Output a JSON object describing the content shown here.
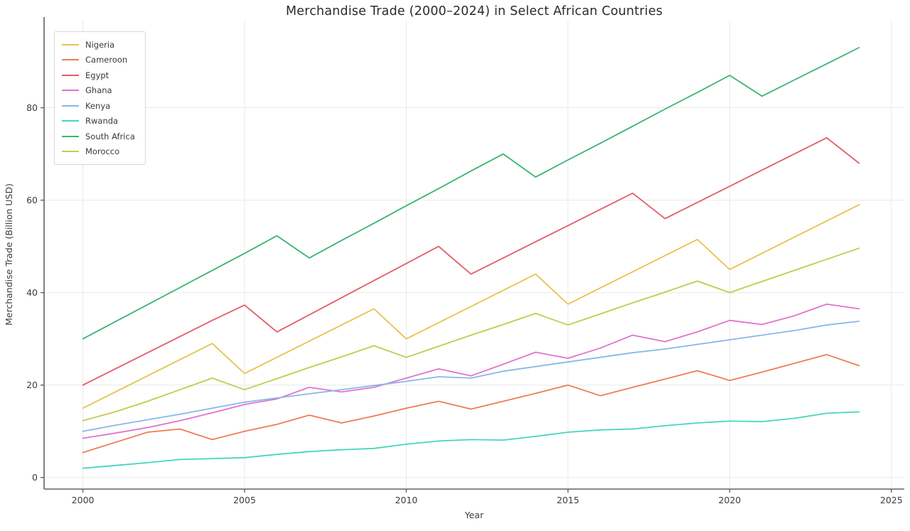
{
  "chart_data": {
    "type": "line",
    "title": "Merchandise Trade (2000–2024) in Select African Countries",
    "xlabel": "Year",
    "ylabel": "Merchandise Trade (Billion USD)",
    "x_ticks": [
      2000,
      2005,
      2010,
      2015,
      2020,
      2025
    ],
    "y_ticks": [
      0,
      20,
      40,
      60,
      80
    ],
    "xlim": [
      1998.8,
      2025.4
    ],
    "ylim": [
      -2.5,
      99
    ],
    "grid": true,
    "legend_position": "upper-left",
    "x": [
      2000,
      2001,
      2002,
      2003,
      2004,
      2005,
      2006,
      2007,
      2008,
      2009,
      2010,
      2011,
      2012,
      2013,
      2014,
      2015,
      2016,
      2017,
      2018,
      2019,
      2020,
      2021,
      2022,
      2023,
      2024
    ],
    "series": [
      {
        "name": "Nigeria",
        "color": "#e7c251",
        "values": [
          15,
          18.5,
          22,
          25.5,
          29,
          22.5,
          26,
          29.5,
          33,
          36.5,
          30,
          33.5,
          37,
          40.5,
          44,
          37.5,
          41,
          44.5,
          48,
          51.5,
          45,
          48.5,
          52,
          55.5,
          59
        ]
      },
      {
        "name": "Cameroon",
        "color": "#ee7c52",
        "values": [
          5.4,
          7.6,
          9.8,
          10.5,
          8.2,
          10,
          11.5,
          13.5,
          11.8,
          13.3,
          15,
          16.5,
          14.8,
          16.5,
          18.2,
          20,
          17.7,
          19.5,
          21.3,
          23.1,
          21,
          22.8,
          24.7,
          26.6,
          24.2
        ]
      },
      {
        "name": "Egypt",
        "color": "#e15d68",
        "values": [
          20,
          23.5,
          27,
          30.5,
          34,
          37.3,
          31.5,
          35.2,
          38.9,
          42.6,
          46.3,
          50,
          44,
          47.5,
          51,
          54.5,
          58,
          61.5,
          56,
          59.5,
          63,
          66.5,
          70,
          73.5,
          68
        ]
      },
      {
        "name": "Ghana",
        "color": "#e272cd",
        "values": [
          8.5,
          9.6,
          10.8,
          12.3,
          14,
          15.8,
          17,
          19.5,
          18.5,
          19.5,
          21.5,
          23.5,
          22,
          24.5,
          27.1,
          25.8,
          28,
          30.8,
          29.4,
          31.5,
          34,
          33.1,
          35,
          37.5,
          36.5
        ]
      },
      {
        "name": "Kenya",
        "color": "#88b8e8",
        "values": [
          10,
          11.3,
          12.5,
          13.7,
          15,
          16.3,
          17.2,
          18.1,
          19,
          19.9,
          20.8,
          21.8,
          21.5,
          23,
          24,
          25,
          26,
          27,
          27.8,
          28.8,
          29.8,
          30.8,
          31.8,
          33,
          33.8
        ]
      },
      {
        "name": "Rwanda",
        "color": "#47d6bb",
        "values": [
          2,
          2.6,
          3.2,
          3.9,
          4.1,
          4.3,
          5,
          5.6,
          6,
          6.3,
          7.2,
          7.9,
          8.2,
          8.1,
          8.9,
          9.8,
          10.3,
          10.5,
          11.2,
          11.8,
          12.2,
          12.1,
          12.8,
          13.9,
          14.2
        ]
      },
      {
        "name": "South Africa",
        "color": "#39b474",
        "values": [
          30,
          33.7,
          37.4,
          41.1,
          44.8,
          48.5,
          52.3,
          47.5,
          51.3,
          55,
          58.8,
          62.5,
          66.3,
          70,
          65,
          68.7,
          72.3,
          76,
          79.7,
          83.3,
          87,
          82.5,
          86,
          89.5,
          93
        ]
      },
      {
        "name": "Morocco",
        "color": "#c5ca4a",
        "values": [
          12.3,
          14.2,
          16.5,
          19,
          21.5,
          19,
          21.4,
          23.8,
          26.1,
          28.5,
          26,
          28.4,
          30.8,
          33.1,
          35.5,
          33,
          35.4,
          37.8,
          40.1,
          42.5,
          40,
          42.4,
          44.8,
          47.2,
          49.6
        ]
      }
    ],
    "colors": {
      "grid": "#e9e9e9",
      "spine": "#5f6368",
      "tick": "#5f6368",
      "text": "#3c3c3c",
      "background": "#ffffff"
    }
  }
}
